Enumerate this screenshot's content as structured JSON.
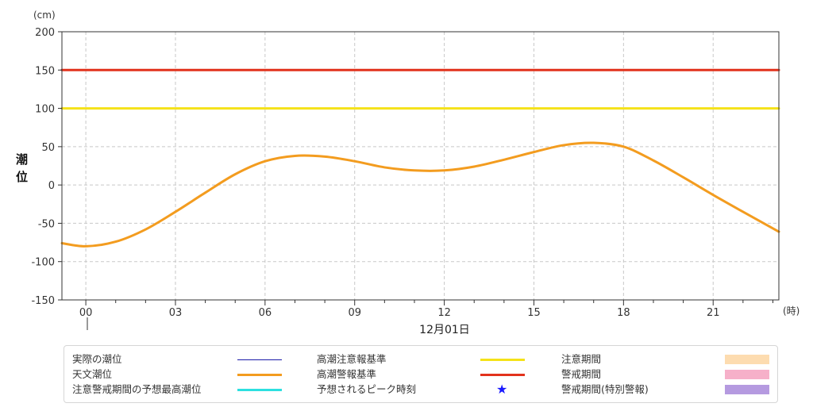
{
  "chart_data": {
    "type": "line",
    "title": "",
    "ylabel": "潮位",
    "y_unit": "(cm)",
    "x_unit": "(時)",
    "date_label": "12月01日",
    "xlim": [
      -0.8,
      23.2
    ],
    "ylim": [
      -150,
      200
    ],
    "yticks": [
      -150,
      -100,
      -50,
      0,
      50,
      100,
      150,
      200
    ],
    "xticks": [
      {
        "value": 0,
        "label": "00"
      },
      {
        "value": 3,
        "label": "03"
      },
      {
        "value": 6,
        "label": "06"
      },
      {
        "value": 9,
        "label": "09"
      },
      {
        "value": 12,
        "label": "12"
      },
      {
        "value": 15,
        "label": "15"
      },
      {
        "value": 18,
        "label": "18"
      },
      {
        "value": 21,
        "label": "21"
      }
    ],
    "grid": true,
    "series": [
      {
        "name": "天文潮位",
        "color": "#f39c1f",
        "x": [
          -0.8,
          0,
          1,
          2,
          3,
          4,
          5,
          6,
          7,
          8,
          9,
          10,
          11,
          12,
          13,
          14,
          15,
          16,
          17,
          18,
          19,
          20,
          21,
          22,
          23.2
        ],
        "y": [
          -76,
          -80,
          -74,
          -58,
          -35,
          -10,
          14,
          31,
          38,
          37,
          31,
          23,
          19,
          19,
          24,
          33,
          43,
          52,
          55,
          50,
          32,
          10,
          -13,
          -35,
          -61
        ]
      },
      {
        "name": "高潮注意報基準",
        "color": "#f5e219",
        "x": [
          -0.8,
          23.2
        ],
        "y": [
          100,
          100
        ]
      },
      {
        "name": "高潮警報基準",
        "color": "#e2321c",
        "x": [
          -0.8,
          23.2
        ],
        "y": [
          150,
          150
        ]
      }
    ]
  },
  "legend": [
    {
      "label": "実際の潮位",
      "symbol": "line",
      "color": "#1a1aa8",
      "weight": 1
    },
    {
      "label": "高潮注意報基準",
      "symbol": "line",
      "color": "#f5e219",
      "weight": 3
    },
    {
      "label": "注意期間",
      "symbol": "box",
      "color": "#fddcb0"
    },
    {
      "label": "天文潮位",
      "symbol": "line",
      "color": "#f39c1f",
      "weight": 3
    },
    {
      "label": "高潮警報基準",
      "symbol": "line",
      "color": "#e2321c",
      "weight": 3
    },
    {
      "label": "警戒期間",
      "symbol": "box",
      "color": "#f6b0c9"
    },
    {
      "label": "注意警戒期間の予想最高潮位",
      "symbol": "line",
      "color": "#2de0e0",
      "weight": 3
    },
    {
      "label": "予想されるピーク時刻",
      "symbol": "star",
      "color": "#1a1aff",
      "glyph": "★"
    },
    {
      "label": "警戒期間(特別警報)",
      "symbol": "box",
      "color": "#b59ae0"
    }
  ]
}
